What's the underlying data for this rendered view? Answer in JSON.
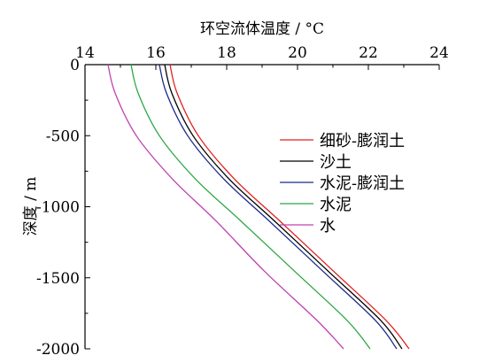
{
  "chart_data": {
    "type": "line",
    "xlabel": "环空流体温度 / °C",
    "ylabel": "深度 / m",
    "xlim": [
      14,
      24
    ],
    "ylim": [
      0,
      -2000
    ],
    "x_ticks": [
      "14",
      "16",
      "18",
      "20",
      "22",
      "24"
    ],
    "y_ticks": [
      "0",
      "-500",
      "-1000",
      "-1500",
      "-2000"
    ],
    "x_axis_position": "top",
    "legend_position": "right",
    "grid": false,
    "series": [
      {
        "name": "细砂-膨润土",
        "color": "#e02020",
        "x": [
          16.4,
          16.6,
          17.2,
          18.2,
          19.5,
          21.0,
          22.5,
          23.15
        ],
        "y": [
          0,
          -200,
          -500,
          -800,
          -1100,
          -1450,
          -1800,
          -2000
        ]
      },
      {
        "name": "沙土",
        "color": "#000000",
        "x": [
          16.25,
          16.45,
          17.05,
          18.05,
          19.35,
          20.85,
          22.35,
          22.95
        ],
        "y": [
          0,
          -200,
          -500,
          -800,
          -1100,
          -1450,
          -1800,
          -2000
        ]
      },
      {
        "name": "水泥-膨润土",
        "color": "#1a2a8a",
        "x": [
          16.1,
          16.3,
          16.9,
          17.9,
          19.2,
          20.7,
          22.2,
          22.8
        ],
        "y": [
          0,
          -200,
          -500,
          -800,
          -1100,
          -1450,
          -1800,
          -2000
        ]
      },
      {
        "name": "水泥",
        "color": "#2aa845",
        "x": [
          15.3,
          15.5,
          16.1,
          17.1,
          18.4,
          19.9,
          21.4,
          22.05
        ],
        "y": [
          0,
          -200,
          -500,
          -800,
          -1100,
          -1450,
          -1800,
          -2000
        ]
      },
      {
        "name": "水",
        "color": "#c040b0",
        "x": [
          14.65,
          14.85,
          15.45,
          16.45,
          17.7,
          19.05,
          20.55,
          21.3
        ],
        "y": [
          0,
          -200,
          -500,
          -800,
          -1100,
          -1450,
          -1800,
          -2000
        ]
      }
    ]
  }
}
